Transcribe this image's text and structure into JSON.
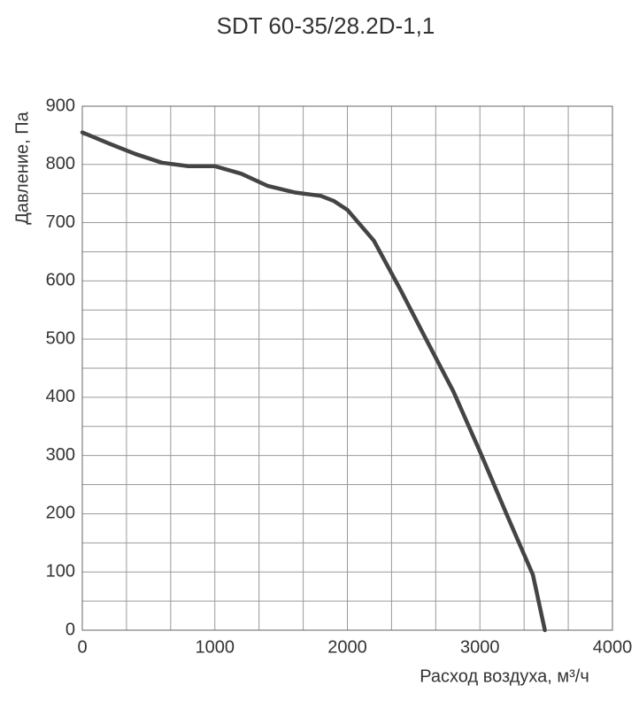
{
  "chart_data": {
    "type": "line",
    "title": "SDT 60-35/28.2D-1,1",
    "x_label": "Расход воздуха, м³/ч",
    "y_label": "Давление, Па",
    "x": [
      0,
      200,
      400,
      600,
      800,
      1000,
      1200,
      1400,
      1600,
      1800,
      1900,
      2000,
      2200,
      2400,
      2600,
      2800,
      3000,
      3200,
      3400,
      3490
    ],
    "series": [
      {
        "name": "SDT 60-35/28.2D-1,1",
        "color": "#444444",
        "values": [
          855,
          836,
          818,
          803,
          797,
          797,
          784,
          763,
          752,
          746,
          737,
          722,
          669,
          585,
          497,
          410,
          307,
          200,
          95,
          0
        ]
      }
    ],
    "xlim": [
      0,
      4000
    ],
    "xticks": [
      0,
      1000,
      2000,
      3000,
      4000
    ],
    "ylim": [
      0,
      900
    ],
    "yticks": [
      0,
      100,
      200,
      300,
      400,
      500,
      600,
      700,
      800,
      900
    ],
    "xgrid": [
      333.33,
      666.67,
      1333.33,
      1666.67,
      2333.33,
      2666.67,
      3333.33,
      3666.67
    ],
    "ygrid": [
      50,
      150,
      250,
      350,
      450,
      550,
      650,
      750,
      850
    ],
    "grid": true
  }
}
